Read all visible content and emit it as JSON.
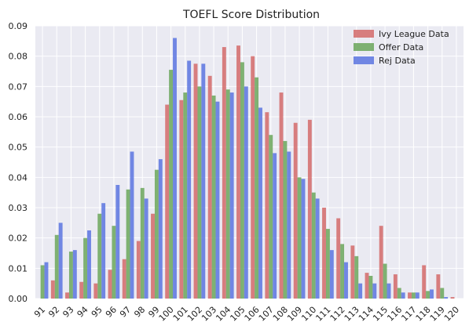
{
  "chart_data": {
    "type": "bar",
    "title": "TOEFL Score Distribution",
    "xlabel": "",
    "ylabel": "",
    "categories": [
      "91",
      "92",
      "93",
      "94",
      "95",
      "96",
      "97",
      "98",
      "99",
      "100",
      "101",
      "102",
      "103",
      "104",
      "105",
      "106",
      "107",
      "108",
      "109",
      "110",
      "111",
      "112",
      "113",
      "114",
      "115",
      "116",
      "117",
      "118",
      "119",
      "120"
    ],
    "ylim": [
      0,
      0.09
    ],
    "yticks": [
      0.0,
      0.01,
      0.02,
      0.03,
      0.04,
      0.05,
      0.06,
      0.07,
      0.08,
      0.09
    ],
    "ytick_labels": [
      "0.00",
      "0.01",
      "0.02",
      "0.03",
      "0.04",
      "0.05",
      "0.06",
      "0.07",
      "0.08",
      "0.09"
    ],
    "grid": true,
    "legend_position": "top-right",
    "series": [
      {
        "name": "Ivy League Data",
        "color": "#d46a6a",
        "values": [
          0.0,
          0.006,
          0.002,
          0.0055,
          0.005,
          0.0095,
          0.013,
          0.019,
          0.028,
          0.064,
          0.0655,
          0.0775,
          0.0735,
          0.083,
          0.0835,
          0.08,
          0.0615,
          0.068,
          0.058,
          0.059,
          0.03,
          0.0265,
          0.0175,
          0.0085,
          0.024,
          0.008,
          0.002,
          0.011,
          0.008,
          0.0005
        ]
      },
      {
        "name": "Offer Data",
        "color": "#6aa65a",
        "values": [
          0.011,
          0.021,
          0.0155,
          0.02,
          0.028,
          0.024,
          0.036,
          0.0365,
          0.0425,
          0.0755,
          0.068,
          0.07,
          0.067,
          0.069,
          0.078,
          0.073,
          0.054,
          0.052,
          0.04,
          0.035,
          0.023,
          0.018,
          0.014,
          0.0075,
          0.0115,
          0.0035,
          0.002,
          0.0025,
          0.0035,
          0.0
        ]
      },
      {
        "name": "Rej Data",
        "color": "#5a74e0",
        "values": [
          0.012,
          0.025,
          0.016,
          0.0225,
          0.0315,
          0.0375,
          0.0485,
          0.033,
          0.046,
          0.086,
          0.0785,
          0.0775,
          0.065,
          0.068,
          0.07,
          0.063,
          0.048,
          0.0485,
          0.0395,
          0.033,
          0.016,
          0.012,
          0.005,
          0.005,
          0.005,
          0.002,
          0.002,
          0.003,
          0.0005,
          0.0
        ]
      }
    ]
  }
}
